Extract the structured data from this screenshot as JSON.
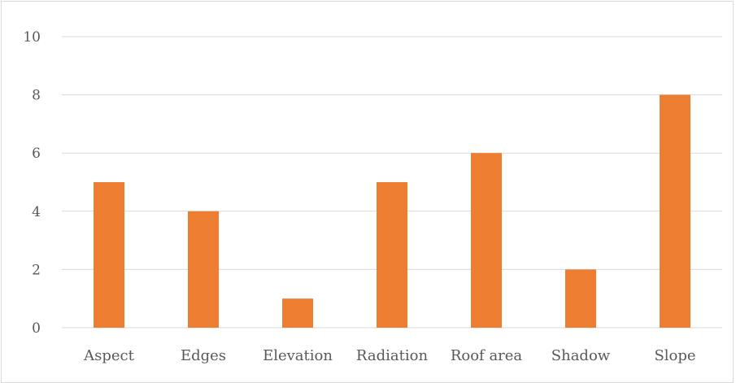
{
  "chart_data": {
    "type": "bar",
    "categories": [
      "Aspect",
      "Edges",
      "Elevation",
      "Radiation",
      "Roof area",
      "Shadow",
      "Slope"
    ],
    "values": [
      5,
      4,
      1,
      5,
      6,
      2,
      8
    ],
    "yticks": [
      "0",
      "2",
      "4",
      "6",
      "8",
      "10"
    ],
    "ylim": [
      0,
      10
    ],
    "grid": true,
    "legend": "none",
    "bar_color": "#ed7d31",
    "grid_color": "#d9d9d9"
  }
}
